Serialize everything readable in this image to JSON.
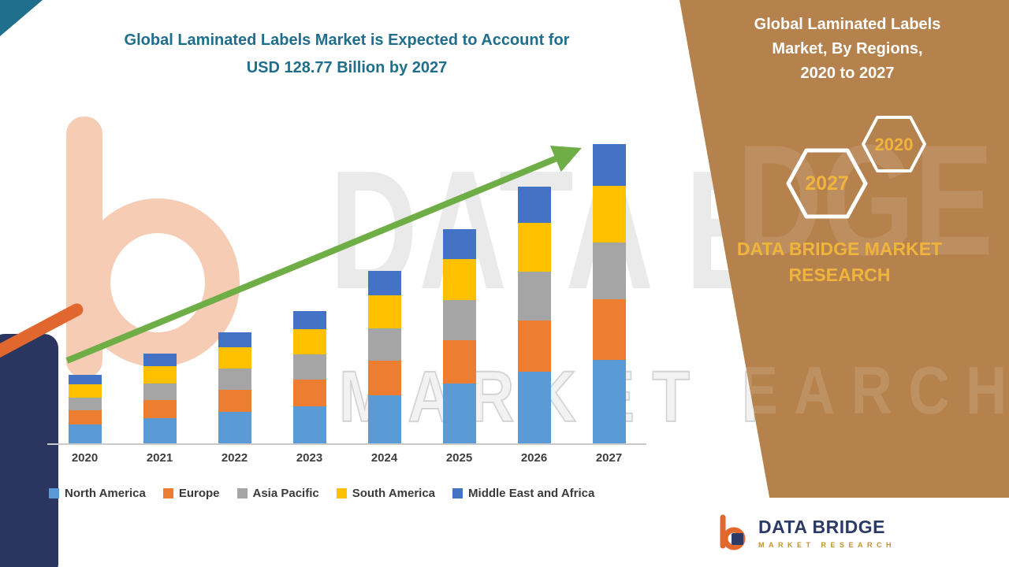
{
  "title": {
    "line1": "Global Laminated Labels Market is Expected to Account for",
    "line2": "USD 128.77 Billion by 2027"
  },
  "watermark": {
    "line1": "DATA BRIDGE",
    "line2": "MARKET RESEARCH"
  },
  "panel": {
    "heading_lines": [
      "Global Laminated Labels",
      "Market, By Regions,",
      "2020 to 2027"
    ],
    "hexagons": [
      {
        "label": "2027"
      },
      {
        "label": "2020"
      }
    ],
    "brand_lines": [
      "DATA BRIDGE MARKET",
      "RESEARCH"
    ],
    "watermark_top": "DGE",
    "watermark_mid": "SEARCH"
  },
  "logo_card": {
    "name": "DATA BRIDGE",
    "subtitle": "MARKET RESEARCH"
  },
  "colors": {
    "title_teal": "#1F6E8C",
    "panel_brown": "#B5824E",
    "gold": "#F0B43C",
    "arrow_green": "#6FAE46",
    "logo_navy": "#2B3A67",
    "logo_orange": "#E2672F"
  },
  "chart_data": {
    "type": "bar",
    "stacked": true,
    "unit": "USD Billion",
    "categories": [
      "2020",
      "2021",
      "2022",
      "2023",
      "2024",
      "2025",
      "2026",
      "2027"
    ],
    "series": [
      {
        "name": "North America",
        "color": "#5B9BD5",
        "values": [
          8.2,
          10.8,
          13.4,
          16.0,
          20.7,
          25.8,
          30.9,
          36.1
        ]
      },
      {
        "name": "Europe",
        "color": "#ED7D31",
        "values": [
          5.9,
          7.7,
          9.6,
          11.4,
          14.8,
          18.5,
          22.1,
          25.8
        ]
      },
      {
        "name": "Asia Pacific",
        "color": "#A5A5A5",
        "values": [
          5.6,
          7.3,
          9.1,
          10.8,
          14.1,
          17.5,
          21.0,
          24.5
        ]
      },
      {
        "name": "South America",
        "color": "#FFC000",
        "values": [
          5.6,
          7.3,
          9.1,
          10.8,
          14.1,
          17.5,
          21.0,
          24.5
        ]
      },
      {
        "name": "Middle East and Africa",
        "color": "#4472C4",
        "values": [
          4.1,
          5.4,
          6.7,
          8.0,
          10.4,
          12.9,
          15.5,
          17.87
        ]
      }
    ],
    "totals": [
      29.4,
      38.5,
      47.9,
      57.0,
      74.1,
      92.2,
      110.5,
      128.77
    ],
    "xlabel": "",
    "ylabel": "",
    "ylim": [
      0,
      140
    ],
    "grid": false,
    "legend_position": "bottom",
    "annotation": "green upward trend arrow from 2020 to 2027"
  }
}
